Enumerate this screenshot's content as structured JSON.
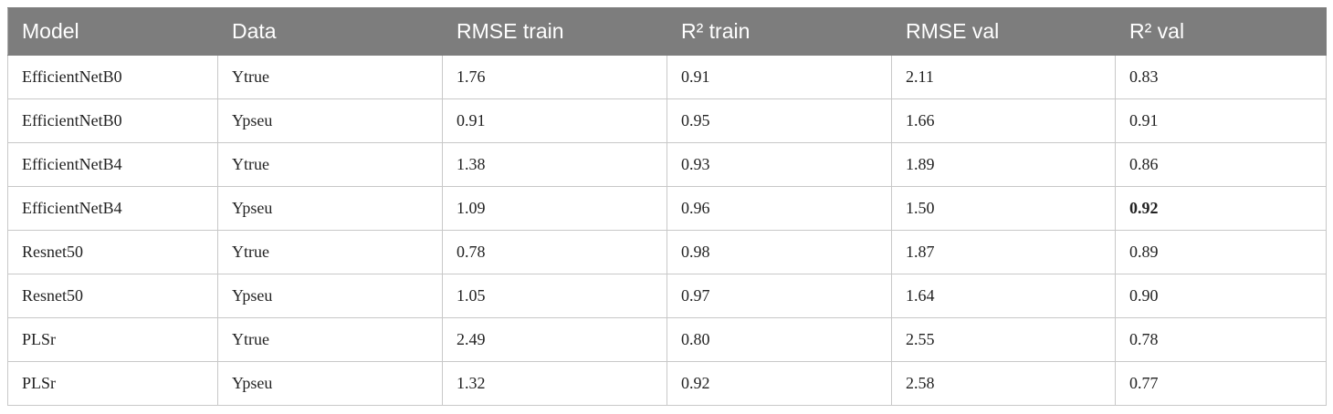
{
  "table": {
    "header": [
      "Model",
      "Data",
      "RMSE train",
      "R² train",
      "RMSE val",
      "R² val"
    ],
    "rows": [
      [
        "EfficientNetB0",
        "Ytrue",
        "1.76",
        "0.91",
        "2.11",
        "0.83"
      ],
      [
        "EfficientNetB0",
        "Ypseu",
        "0.91",
        "0.95",
        "1.66",
        "0.91"
      ],
      [
        "EfficientNetB4",
        "Ytrue",
        "1.38",
        "0.93",
        "1.89",
        "0.86"
      ],
      [
        "EfficientNetB4",
        "Ypseu",
        "1.09",
        "0.96",
        "1.50",
        "0.92"
      ],
      [
        "Resnet50",
        "Ytrue",
        "0.78",
        "0.98",
        "1.87",
        "0.89"
      ],
      [
        "Resnet50",
        "Ypseu",
        "1.05",
        "0.97",
        "1.64",
        "0.90"
      ],
      [
        "PLSr",
        "Ytrue",
        "2.49",
        "0.80",
        "2.55",
        "0.78"
      ],
      [
        "PLSr",
        "Ypseu",
        "1.32",
        "0.92",
        "2.58",
        "0.77"
      ]
    ],
    "bold_cells": [
      [
        3,
        5
      ]
    ]
  }
}
